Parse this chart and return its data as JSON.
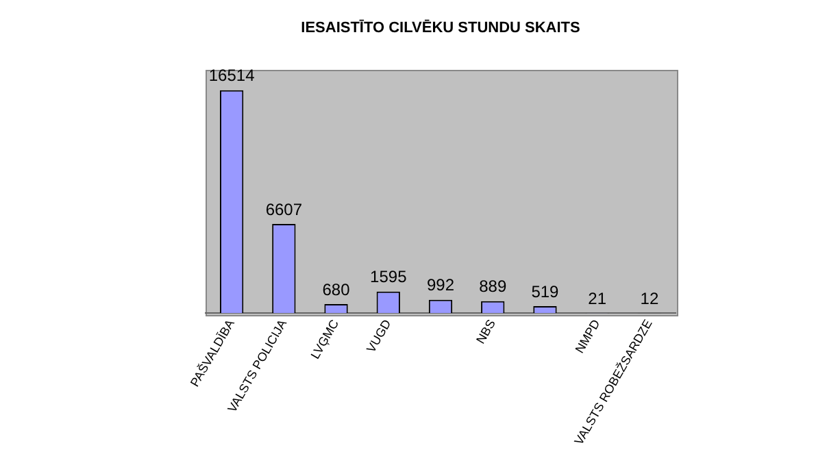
{
  "chart_data": {
    "type": "bar",
    "title": "IESAISTĪTO CILVĒKU STUNDU SKAITS",
    "categories": [
      "PAŠVALDĪBA",
      "VALSTS POLICIJA",
      "LVĢMC",
      "VUGD",
      null,
      "NBS",
      null,
      "NMPD",
      "VALSTS ROBEŽSARDZE"
    ],
    "values": [
      16514,
      6607,
      680,
      1595,
      992,
      889,
      519,
      21,
      12
    ],
    "color": "#9999ff",
    "tick_labels": "x",
    "data_labels": true,
    "grid": false,
    "legend": false
  }
}
